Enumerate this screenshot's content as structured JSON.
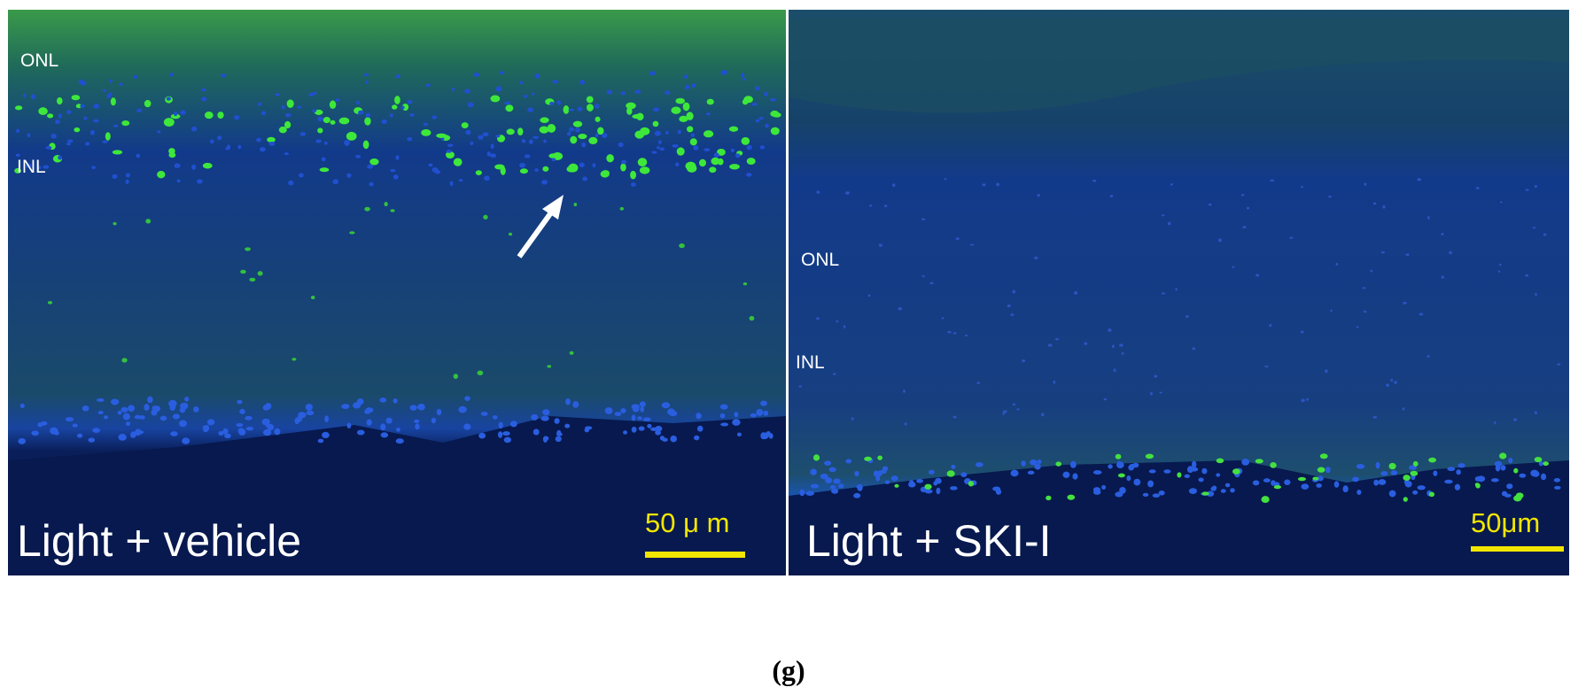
{
  "panels": [
    {
      "layer_labels": [
        "ONL",
        "INL"
      ],
      "caption": "Light + vehicle",
      "scale_bar": "50 μ m"
    },
    {
      "layer_labels": [
        "ONL",
        "INL"
      ],
      "caption": "Light + SKI-I",
      "scale_bar": "50μm"
    }
  ],
  "figure_label": "(g)"
}
